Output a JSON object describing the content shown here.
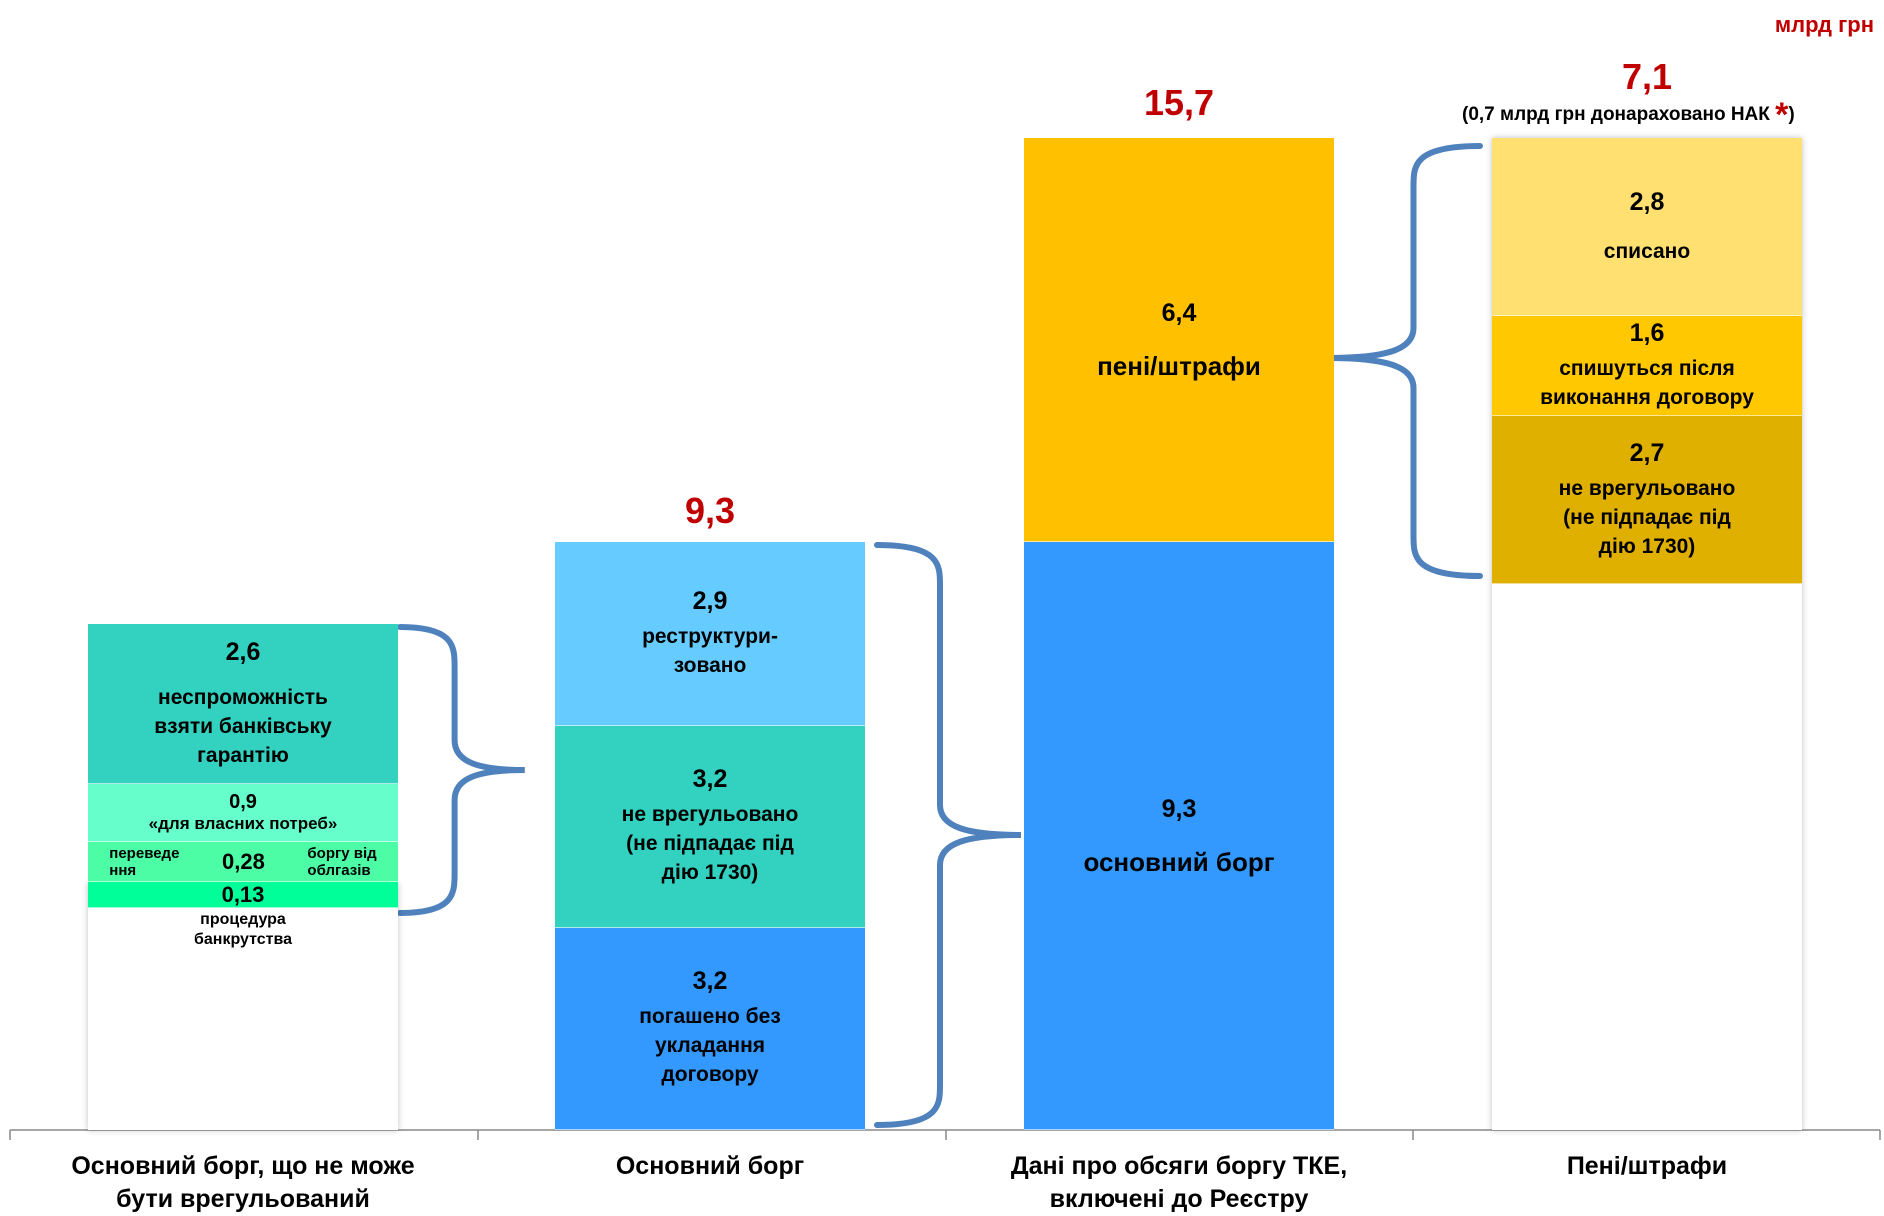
{
  "unit": "млрд грн",
  "chart_data": {
    "type": "bar",
    "stacked": true,
    "categories": [
      "Основний борг, що не може\nбути врегульований",
      "Основний борг",
      "Дані про обсяги  боргу ТКЕ,\nвключені до Реєстру",
      "Пені/штрафи"
    ],
    "totals": [
      "",
      "9,3",
      "15,7",
      "7,1"
    ],
    "total_note": "(0,7 млрд грн донараховано НАК ",
    "total_note_star": "*",
    "total_note_end": ")",
    "columns": [
      {
        "segments": [
          {
            "value": 2.6,
            "value_label": "2,6",
            "label": "неспроможність\nвзяти банківську\nгарантію",
            "color": "#33d1bf"
          },
          {
            "value": 0.9,
            "value_label": "0,9",
            "label": "«для власних потреб»",
            "color": "#66ffcc"
          },
          {
            "value": 0.28,
            "value_label": "0,28",
            "label_left": "переведе\nння",
            "label_right": "боргу від\nоблгазів",
            "color": "#4dfda6"
          },
          {
            "value": 0.13,
            "value_label": "0,13",
            "label_below": "процедура\nбанкрутства",
            "color": "#00ff99"
          }
        ]
      },
      {
        "segments": [
          {
            "value": 2.9,
            "value_label": "2,9",
            "label": "реструктури-\nзовано",
            "color": "#66ccff"
          },
          {
            "value": 3.2,
            "value_label": "3,2",
            "label": "не врегульовано\n(не підпадає під\nдію 1730)",
            "color": "#33d1bf"
          },
          {
            "value": 3.2,
            "value_label": "3,2",
            "label": "погашено без\nукладання\nдоговору",
            "color": "#3399ff"
          }
        ]
      },
      {
        "segments": [
          {
            "value": 6.4,
            "value_label": "6,4",
            "label": "пені/штрафи",
            "color": "#ffc000"
          },
          {
            "value": 9.3,
            "value_label": "9,3",
            "label": "основний борг",
            "color": "#3399ff"
          }
        ]
      },
      {
        "segments": [
          {
            "value": 2.8,
            "value_label": "2,8",
            "label": "списано",
            "color": "#ffe070"
          },
          {
            "value": 1.6,
            "value_label": "1,6",
            "label": "спишуться після\nвиконання договору",
            "color": "#ffc800"
          },
          {
            "value": 2.7,
            "value_label": "2,7",
            "label": "не врегульовано\n(не підпадає під\nдію 1730)",
            "color": "#e0b000"
          }
        ]
      }
    ],
    "y_max": 15.7,
    "grid": false,
    "legend": "none",
    "brace_color": "#4f81bd"
  }
}
